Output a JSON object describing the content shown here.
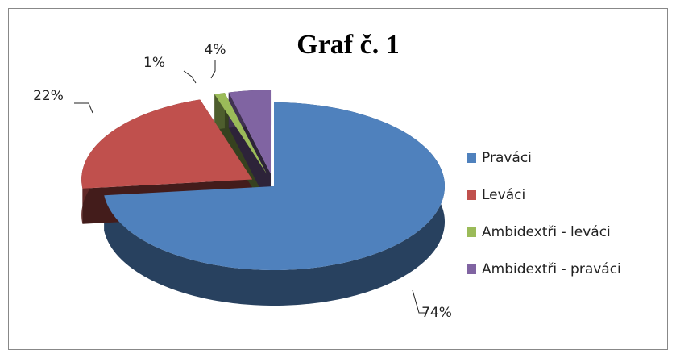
{
  "chart_data": {
    "type": "pie",
    "title": "Graf č. 1",
    "categories": [
      "Praváci",
      "Leváci",
      "Ambidextři - leváci",
      "Ambidextři - praváci"
    ],
    "values": [
      74,
      22,
      1,
      4
    ],
    "value_labels": [
      "74%",
      "22%",
      "1%",
      "4%"
    ],
    "colors": [
      "#4f81bd",
      "#c0504d",
      "#9bbb59",
      "#8064a2"
    ],
    "legend": "right",
    "three_d": true
  }
}
